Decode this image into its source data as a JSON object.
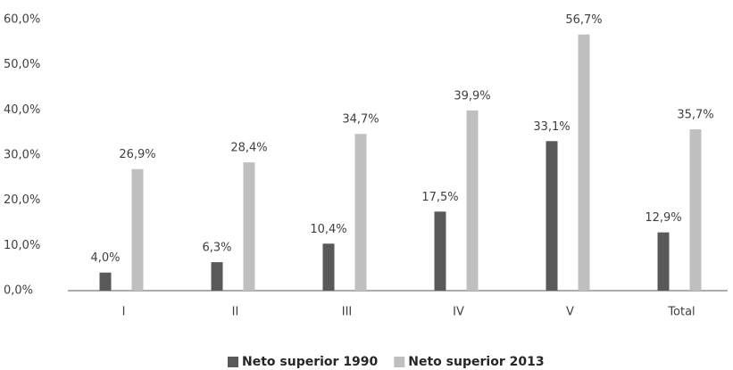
{
  "chart_data": {
    "type": "bar",
    "categories": [
      "I",
      "II",
      "III",
      "IV",
      "V",
      "Total"
    ],
    "series": [
      {
        "name": "Neto superior 1990",
        "color": "#595959",
        "values": [
          4.0,
          6.3,
          10.4,
          17.5,
          33.1,
          12.9
        ],
        "value_labels": [
          "4,0%",
          "6,3%",
          "10,4%",
          "17,5%",
          "33,1%",
          "12,9%"
        ]
      },
      {
        "name": "Neto superior 2013",
        "color": "#bfbfbf",
        "values": [
          26.9,
          28.4,
          34.7,
          39.9,
          56.7,
          35.7
        ],
        "value_labels": [
          "26,9%",
          "28,4%",
          "34,7%",
          "39,9%",
          "56,7%",
          "35,7%"
        ]
      }
    ],
    "ylim": [
      0,
      60
    ],
    "yticks": [
      {
        "value": 0,
        "label": "0,0%"
      },
      {
        "value": 10,
        "label": "10,0%"
      },
      {
        "value": 20,
        "label": "20,0%"
      },
      {
        "value": 30,
        "label": "30,0%"
      },
      {
        "value": 40,
        "label": "40,0%"
      },
      {
        "value": 50,
        "label": "50,0%"
      },
      {
        "value": 60,
        "label": "60,0%"
      }
    ],
    "grid": false,
    "legend": "bottom"
  }
}
